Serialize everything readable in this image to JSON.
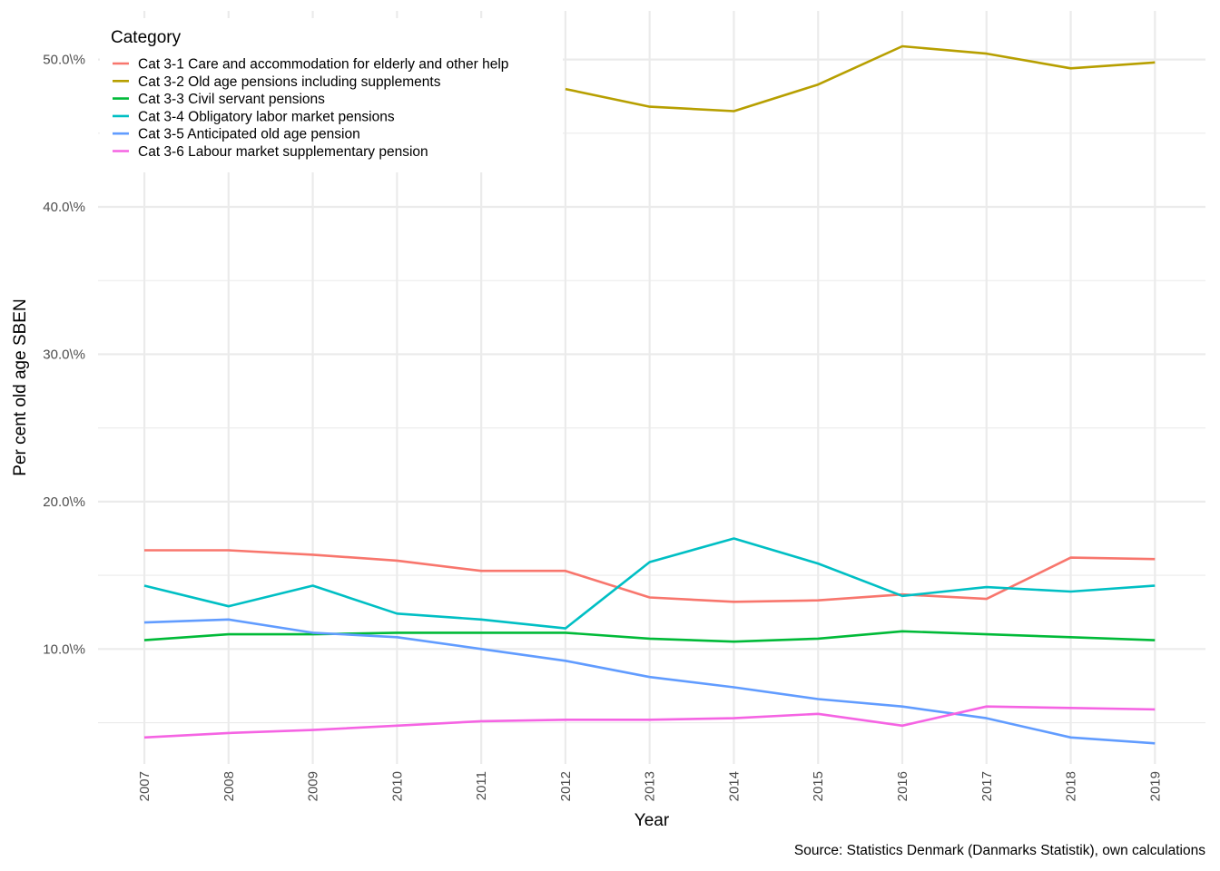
{
  "chart_data": {
    "type": "line",
    "x": [
      2007,
      2008,
      2009,
      2010,
      2011,
      2012,
      2013,
      2014,
      2015,
      2016,
      2017,
      2018,
      2019
    ],
    "x_tick_labels": [
      "2007",
      "2008",
      "2009",
      "2010",
      "2011",
      "2012",
      "2013",
      "2014",
      "2015",
      "2016",
      "2017",
      "2018",
      "2019"
    ],
    "y_ticks": [
      10,
      20,
      30,
      40,
      50
    ],
    "y_tick_labels": [
      "10.0\\%",
      "20.0\\%",
      "30.0\\%",
      "40.0\\%",
      "50.0\\%"
    ],
    "ylim": [
      2.2,
      53.3
    ],
    "xlim": [
      2006.45,
      2019.6
    ],
    "xlabel": "Year",
    "ylabel": "Per cent old age SBEN",
    "grid": true,
    "legend": {
      "title": "Category",
      "placement": "top-left"
    },
    "caption": "Source: Statistics Denmark (Danmarks Statistik), own calculations",
    "series": [
      {
        "name": "Cat 3-1 Care and accommodation for elderly and other help",
        "color": "#F8766D",
        "values": [
          16.7,
          16.7,
          16.4,
          16.0,
          15.3,
          15.3,
          13.5,
          13.2,
          13.3,
          13.7,
          13.4,
          16.2,
          16.1
        ]
      },
      {
        "name": "Cat 3-2 Old age pensions including supplements",
        "color": "#B79F00",
        "values": [
          null,
          null,
          null,
          null,
          null,
          48.0,
          46.8,
          46.5,
          48.3,
          50.9,
          50.4,
          49.4,
          49.8
        ]
      },
      {
        "name": "Cat 3-3 Civil servant pensions",
        "color": "#00BA38",
        "values": [
          10.6,
          11.0,
          11.0,
          11.1,
          11.1,
          11.1,
          10.7,
          10.5,
          10.7,
          11.2,
          11.0,
          10.8,
          10.6
        ]
      },
      {
        "name": "Cat 3-4 Obligatory labor market pensions",
        "color": "#00BFC4",
        "values": [
          14.3,
          12.9,
          14.3,
          12.4,
          12.0,
          11.4,
          15.9,
          17.5,
          15.8,
          13.6,
          14.2,
          13.9,
          14.3
        ]
      },
      {
        "name": "Cat 3-5 Anticipated old age pension",
        "color": "#619CFF",
        "values": [
          11.8,
          12.0,
          11.1,
          10.8,
          10.0,
          9.2,
          8.1,
          7.4,
          6.6,
          6.1,
          5.3,
          4.0,
          3.6
        ]
      },
      {
        "name": "Cat 3-6 Labour market supplementary pension",
        "color": "#F564E3",
        "values": [
          4.0,
          4.3,
          4.5,
          4.8,
          5.1,
          5.2,
          5.2,
          5.3,
          5.6,
          4.8,
          6.1,
          6.0,
          5.9
        ]
      }
    ]
  }
}
